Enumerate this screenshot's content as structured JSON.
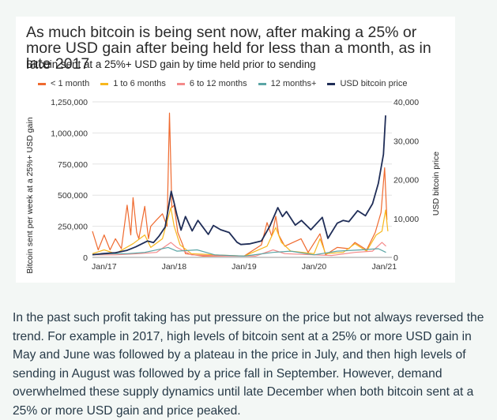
{
  "chart_data": {
    "type": "line",
    "title": "As much bitcoin is being sent now, after making a 25% or more USD gain after being held for less than a month, as in late 2017",
    "subtitle": "Bitcoin sent at a 25%+ USD gain by time held prior to sending",
    "ylabel": "Bitcoin sent per week at a 25%+ USD gain",
    "y2label": "USD bitcoin price",
    "xlim": [
      "2016-11-01",
      "2021-02-10"
    ],
    "ylim": [
      0,
      1250000
    ],
    "y2lim": [
      0,
      40000
    ],
    "x_ticks": [
      {
        "date": "2017-01-01",
        "label": "Jan/17"
      },
      {
        "date": "2018-01-01",
        "label": "Jan/18"
      },
      {
        "date": "2019-01-01",
        "label": "Jan/19"
      },
      {
        "date": "2020-01-01",
        "label": "Jan/20"
      },
      {
        "date": "2021-01-01",
        "label": "Jan/21"
      }
    ],
    "y_ticks": [
      {
        "value": 0,
        "label": "0"
      },
      {
        "value": 250000,
        "label": "250,000"
      },
      {
        "value": 500000,
        "label": "500,000"
      },
      {
        "value": 750000,
        "label": "750,000"
      },
      {
        "value": 1000000,
        "label": "1,000,000"
      },
      {
        "value": 1250000,
        "label": "1,250,000"
      }
    ],
    "y2_ticks": [
      {
        "value": 0,
        "label": "0"
      },
      {
        "value": 10000,
        "label": "10,000"
      },
      {
        "value": 20000,
        "label": "20,000"
      },
      {
        "value": 30000,
        "label": "30,000"
      },
      {
        "value": 40000,
        "label": "40,000"
      }
    ],
    "legend_position": "top",
    "grid": "horizontal",
    "series": [
      {
        "name": "< 1 month",
        "color": "#ef6a2f",
        "axis": "left",
        "points": [
          [
            "2016-11-01",
            210000
          ],
          [
            "2016-12-01",
            60000
          ],
          [
            "2017-01-01",
            180000
          ],
          [
            "2017-02-01",
            60000
          ],
          [
            "2017-03-01",
            150000
          ],
          [
            "2017-04-01",
            70000
          ],
          [
            "2017-05-01",
            420000
          ],
          [
            "2017-05-20",
            180000
          ],
          [
            "2017-06-01",
            480000
          ],
          [
            "2017-06-20",
            200000
          ],
          [
            "2017-07-01",
            150000
          ],
          [
            "2017-08-01",
            410000
          ],
          [
            "2017-08-20",
            150000
          ],
          [
            "2017-09-01",
            250000
          ],
          [
            "2017-10-01",
            300000
          ],
          [
            "2017-11-01",
            350000
          ],
          [
            "2017-11-25",
            250000
          ],
          [
            "2017-12-08",
            1160000
          ],
          [
            "2017-12-20",
            400000
          ],
          [
            "2018-01-01",
            420000
          ],
          [
            "2018-01-20",
            200000
          ],
          [
            "2018-02-15",
            100000
          ],
          [
            "2018-03-01",
            30000
          ],
          [
            "2018-06-01",
            10000
          ],
          [
            "2018-09-01",
            10000
          ],
          [
            "2019-01-01",
            10000
          ],
          [
            "2019-04-01",
            100000
          ],
          [
            "2019-05-01",
            280000
          ],
          [
            "2019-05-25",
            170000
          ],
          [
            "2019-06-15",
            330000
          ],
          [
            "2019-07-01",
            180000
          ],
          [
            "2019-08-01",
            90000
          ],
          [
            "2019-10-25",
            150000
          ],
          [
            "2019-12-01",
            40000
          ],
          [
            "2020-02-01",
            190000
          ],
          [
            "2020-03-01",
            20000
          ],
          [
            "2020-05-01",
            80000
          ],
          [
            "2020-07-01",
            70000
          ],
          [
            "2020-08-01",
            120000
          ],
          [
            "2020-10-01",
            60000
          ],
          [
            "2020-11-15",
            200000
          ],
          [
            "2020-12-15",
            360000
          ],
          [
            "2021-01-03",
            720000
          ],
          [
            "2021-01-15",
            300000
          ]
        ]
      },
      {
        "name": "1 to 6 months",
        "color": "#f7b71d",
        "axis": "left",
        "points": [
          [
            "2016-11-01",
            30000
          ],
          [
            "2017-01-01",
            60000
          ],
          [
            "2017-03-01",
            30000
          ],
          [
            "2017-06-01",
            110000
          ],
          [
            "2017-08-01",
            180000
          ],
          [
            "2017-09-01",
            80000
          ],
          [
            "2017-11-01",
            150000
          ],
          [
            "2017-12-15",
            400000
          ],
          [
            "2018-01-01",
            250000
          ],
          [
            "2018-02-01",
            100000
          ],
          [
            "2018-04-01",
            30000
          ],
          [
            "2018-08-01",
            20000
          ],
          [
            "2019-01-01",
            10000
          ],
          [
            "2019-05-01",
            90000
          ],
          [
            "2019-06-15",
            240000
          ],
          [
            "2019-07-15",
            120000
          ],
          [
            "2019-09-01",
            50000
          ],
          [
            "2020-01-01",
            30000
          ],
          [
            "2020-02-01",
            150000
          ],
          [
            "2020-03-01",
            30000
          ],
          [
            "2020-06-01",
            40000
          ],
          [
            "2020-08-01",
            110000
          ],
          [
            "2020-10-01",
            50000
          ],
          [
            "2020-11-20",
            180000
          ],
          [
            "2020-12-20",
            210000
          ],
          [
            "2021-01-08",
            380000
          ],
          [
            "2021-01-20",
            210000
          ]
        ]
      },
      {
        "name": "6 to 12 months",
        "color": "#f48a8a",
        "axis": "left",
        "points": [
          [
            "2016-11-01",
            20000
          ],
          [
            "2017-03-01",
            20000
          ],
          [
            "2017-07-01",
            30000
          ],
          [
            "2017-10-01",
            40000
          ],
          [
            "2017-12-15",
            120000
          ],
          [
            "2018-01-15",
            80000
          ],
          [
            "2018-04-01",
            20000
          ],
          [
            "2018-10-01",
            10000
          ],
          [
            "2019-03-01",
            10000
          ],
          [
            "2019-06-01",
            60000
          ],
          [
            "2019-08-01",
            30000
          ],
          [
            "2020-01-01",
            20000
          ],
          [
            "2020-04-01",
            15000
          ],
          [
            "2020-08-01",
            40000
          ],
          [
            "2020-11-01",
            50000
          ],
          [
            "2020-12-20",
            120000
          ],
          [
            "2021-01-10",
            90000
          ]
        ]
      },
      {
        "name": "12 months+",
        "color": "#5aa5a5",
        "axis": "left",
        "points": [
          [
            "2016-11-01",
            20000
          ],
          [
            "2017-02-01",
            30000
          ],
          [
            "2017-05-01",
            30000
          ],
          [
            "2017-08-01",
            40000
          ],
          [
            "2017-12-01",
            80000
          ],
          [
            "2018-01-15",
            50000
          ],
          [
            "2018-05-01",
            60000
          ],
          [
            "2018-08-01",
            20000
          ],
          [
            "2019-01-01",
            10000
          ],
          [
            "2019-06-01",
            40000
          ],
          [
            "2019-09-01",
            50000
          ],
          [
            "2020-01-01",
            20000
          ],
          [
            "2020-05-01",
            50000
          ],
          [
            "2020-09-01",
            60000
          ],
          [
            "2020-12-01",
            70000
          ],
          [
            "2021-01-10",
            40000
          ]
        ]
      },
      {
        "name": "USD bitcoin price",
        "color": "#1f2d57",
        "axis": "right",
        "points": [
          [
            "2016-11-01",
            700
          ],
          [
            "2017-01-01",
            1000
          ],
          [
            "2017-03-01",
            1200
          ],
          [
            "2017-05-01",
            1800
          ],
          [
            "2017-06-15",
            2700
          ],
          [
            "2017-08-15",
            4200
          ],
          [
            "2017-09-15",
            3800
          ],
          [
            "2017-10-15",
            5500
          ],
          [
            "2017-11-15",
            7800
          ],
          [
            "2017-12-17",
            17000
          ],
          [
            "2018-01-01",
            14000
          ],
          [
            "2018-01-15",
            11000
          ],
          [
            "2018-02-06",
            7000
          ],
          [
            "2018-03-01",
            10500
          ],
          [
            "2018-04-05",
            6800
          ],
          [
            "2018-05-05",
            9500
          ],
          [
            "2018-06-28",
            5900
          ],
          [
            "2018-07-25",
            8200
          ],
          [
            "2018-09-01",
            7100
          ],
          [
            "2018-10-15",
            6400
          ],
          [
            "2018-11-25",
            3900
          ],
          [
            "2018-12-15",
            3300
          ],
          [
            "2019-02-01",
            3500
          ],
          [
            "2019-04-01",
            4200
          ],
          [
            "2019-05-15",
            8000
          ],
          [
            "2019-06-26",
            12800
          ],
          [
            "2019-07-20",
            10500
          ],
          [
            "2019-08-10",
            11800
          ],
          [
            "2019-09-25",
            8300
          ],
          [
            "2019-10-27",
            9500
          ],
          [
            "2019-12-15",
            7100
          ],
          [
            "2020-02-13",
            10300
          ],
          [
            "2020-03-13",
            4900
          ],
          [
            "2020-05-01",
            8800
          ],
          [
            "2020-06-01",
            9500
          ],
          [
            "2020-07-01",
            9200
          ],
          [
            "2020-08-15",
            12000
          ],
          [
            "2020-09-25",
            10700
          ],
          [
            "2020-11-01",
            13800
          ],
          [
            "2020-12-01",
            19000
          ],
          [
            "2020-12-28",
            26500
          ],
          [
            "2021-01-08",
            36500
          ]
        ]
      }
    ]
  },
  "body": {
    "paragraph": "In the past such profit taking has put pressure on the price but not always reversed the trend. For example in 2017, high levels of bitcoin sent at a 25% or more USD gain in May and June was followed by a plateau in the price in July, and then high levels of sending in August was followed by a price fall in September. However, demand overwhelmed these supply dynamics until late December when both bitcoin sent at a 25% or more USD gain and price peaked."
  }
}
